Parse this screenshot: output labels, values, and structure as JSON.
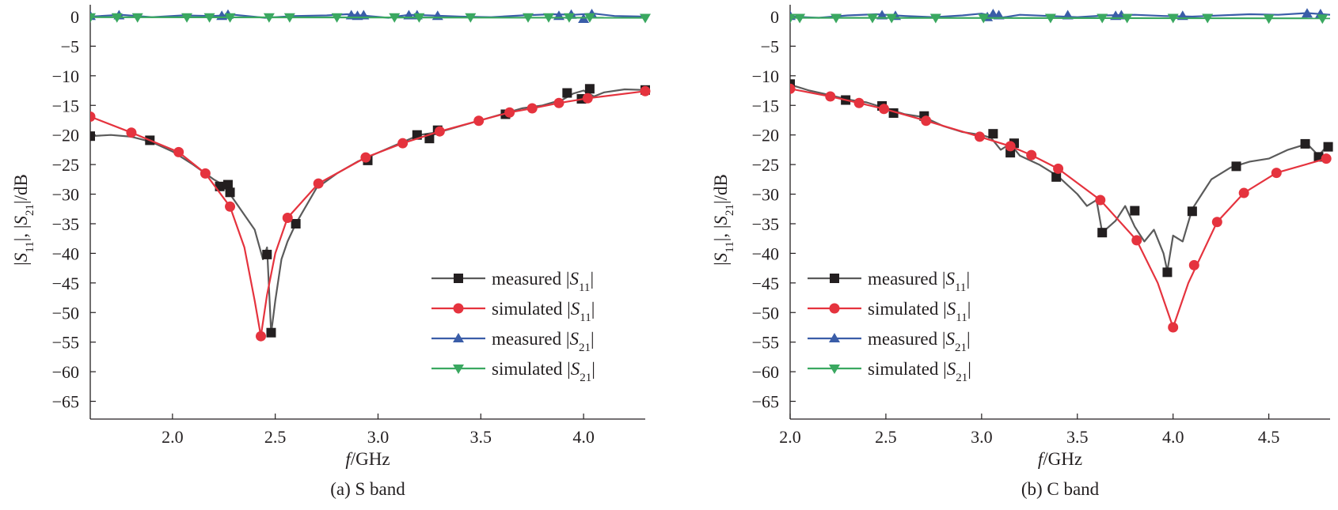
{
  "chart_data": [
    {
      "type": "line",
      "caption": "(a) S band",
      "xlabel_italic": "f",
      "xlabel_rest": "/GHz",
      "ylabel": "|S11|, |S21|/dB",
      "xlim": [
        1.6,
        4.3
      ],
      "ylim": [
        -68,
        2
      ],
      "xticks": [
        2.0,
        2.5,
        3.0,
        3.5,
        4.0
      ],
      "yticks": [
        0,
        -5,
        -10,
        -15,
        -20,
        -25,
        -30,
        -35,
        -40,
        -45,
        -50,
        -55,
        -60,
        -65
      ],
      "grid": false,
      "legend_position": "bottom-right",
      "series": [
        {
          "name": "measured |S11|",
          "color": "#5b5b5b",
          "marker": "square",
          "marker_color": "#231f20",
          "x": [
            1.6,
            1.7,
            1.8,
            1.9,
            2.0,
            2.1,
            2.2,
            2.25,
            2.3,
            2.35,
            2.4,
            2.44,
            2.46,
            2.48,
            2.5,
            2.53,
            2.56,
            2.6,
            2.7,
            2.8,
            2.9,
            3.0,
            3.1,
            3.2,
            3.3,
            3.4,
            3.5,
            3.6,
            3.7,
            3.8,
            3.9,
            3.95,
            4.0,
            4.05,
            4.1,
            4.2,
            4.3
          ],
          "y": [
            -20.2,
            -20.0,
            -20.3,
            -21.2,
            -22.8,
            -25.0,
            -27.5,
            -28.5,
            -31.0,
            -33.5,
            -36.0,
            -41.0,
            -39.0,
            -53.5,
            -48.0,
            -41.0,
            -38.0,
            -35.0,
            -29.0,
            -26.5,
            -24.5,
            -23.0,
            -21.5,
            -20.0,
            -19.5,
            -18.5,
            -17.5,
            -16.5,
            -15.5,
            -15.0,
            -14.0,
            -13.0,
            -12.5,
            -13.5,
            -12.8,
            -12.3,
            -12.4
          ],
          "marker_x": [
            1.6,
            1.89,
            2.23,
            2.27,
            2.28,
            2.46,
            2.48,
            2.6,
            2.95,
            3.19,
            3.25,
            3.29,
            3.62,
            3.92,
            3.99,
            4.03,
            4.3
          ],
          "marker_y": [
            -20.2,
            -20.9,
            -28.7,
            -28.4,
            -29.7,
            -40.2,
            -53.4,
            -35.0,
            -24.3,
            -20.0,
            -20.6,
            -19.2,
            -16.5,
            -12.9,
            -13.9,
            -12.2,
            -12.4
          ]
        },
        {
          "name": "simulated |S11|",
          "color": "#e5333e",
          "marker": "circle",
          "marker_color": "#e5333e",
          "x": [
            1.6,
            1.8,
            2.03,
            2.16,
            2.28,
            2.35,
            2.4,
            2.43,
            2.46,
            2.5,
            2.56,
            2.71,
            2.94,
            3.12,
            3.3,
            3.49,
            3.64,
            3.75,
            3.88,
            4.02,
            4.3
          ],
          "y": [
            -16.9,
            -19.6,
            -22.9,
            -26.5,
            -32.1,
            -39.0,
            -48.0,
            -54.0,
            -47.0,
            -40.0,
            -34.0,
            -28.2,
            -23.8,
            -21.4,
            -19.4,
            -17.6,
            -16.2,
            -15.5,
            -14.6,
            -13.8,
            -12.6
          ],
          "marker_x": [
            1.6,
            1.8,
            2.03,
            2.16,
            2.28,
            2.43,
            2.56,
            2.71,
            2.94,
            3.12,
            3.3,
            3.49,
            3.64,
            3.75,
            3.88,
            4.02,
            4.3
          ],
          "marker_y": [
            -16.9,
            -19.6,
            -22.9,
            -26.5,
            -32.1,
            -54.0,
            -34.0,
            -28.2,
            -23.8,
            -21.4,
            -19.4,
            -17.6,
            -16.2,
            -15.5,
            -14.6,
            -13.8,
            -12.6
          ]
        },
        {
          "name": "measured |S21|",
          "color": "#3a5da8",
          "marker": "triangle-up",
          "marker_color": "#3a5da8",
          "x": [
            1.6,
            1.75,
            1.9,
            2.05,
            2.2,
            2.3,
            2.45,
            2.6,
            2.75,
            2.85,
            2.95,
            3.05,
            3.15,
            3.25,
            3.4,
            3.55,
            3.7,
            3.85,
            3.95,
            4.05,
            4.15,
            4.3
          ],
          "y": [
            0,
            0.3,
            -0.1,
            0.2,
            0.1,
            0.3,
            -0.2,
            0.1,
            0.2,
            0.4,
            0.1,
            -0.2,
            0.3,
            0.2,
            0.0,
            -0.1,
            0.2,
            0.4,
            0.3,
            0.5,
            0.1,
            0.0
          ],
          "marker_x": [
            1.6,
            1.74,
            2.24,
            2.27,
            2.87,
            2.9,
            2.93,
            3.15,
            3.19,
            3.29,
            3.88,
            3.94,
            4.0,
            4.04
          ],
          "marker_y": [
            0.1,
            0.2,
            0.1,
            0.3,
            0.2,
            0.1,
            0.2,
            0.2,
            0.2,
            0.1,
            0.1,
            0.3,
            -0.4,
            0.4
          ]
        },
        {
          "name": "simulated |S21|",
          "color": "#3aa860",
          "marker": "triangle-down",
          "marker_color": "#3aa860",
          "x": [
            1.6,
            4.3
          ],
          "y": [
            -0.1,
            -0.2
          ],
          "marker_x": [
            1.6,
            1.73,
            1.83,
            2.07,
            2.18,
            2.28,
            2.47,
            2.57,
            2.8,
            3.08,
            3.2,
            3.45,
            3.73,
            3.83,
            3.93,
            4.03,
            4.3
          ],
          "marker_y": [
            -0.1,
            -0.1,
            -0.1,
            -0.1,
            -0.1,
            -0.1,
            -0.1,
            -0.1,
            -0.1,
            -0.1,
            -0.1,
            -0.1,
            -0.1,
            -0.1,
            -0.1,
            -0.1,
            -0.2
          ]
        }
      ]
    },
    {
      "type": "line",
      "caption": "(b) C band",
      "xlabel_italic": "f",
      "xlabel_rest": "/GHz",
      "ylabel": "|S11|, |S21|/dB",
      "xlim": [
        2.0,
        4.82
      ],
      "ylim": [
        -68,
        2
      ],
      "xticks": [
        2.0,
        2.5,
        3.0,
        3.5,
        4.0,
        4.5
      ],
      "yticks": [
        0,
        -5,
        -10,
        -15,
        -20,
        -25,
        -30,
        -35,
        -40,
        -45,
        -50,
        -55,
        -60,
        -65
      ],
      "grid": false,
      "legend_position": "bottom-left",
      "series": [
        {
          "name": "measured |S11|",
          "color": "#5b5b5b",
          "marker": "square",
          "marker_color": "#231f20",
          "x": [
            2.0,
            2.1,
            2.2,
            2.3,
            2.4,
            2.5,
            2.6,
            2.7,
            2.8,
            2.9,
            3.0,
            3.05,
            3.1,
            3.15,
            3.2,
            3.3,
            3.4,
            3.5,
            3.55,
            3.6,
            3.63,
            3.7,
            3.75,
            3.8,
            3.85,
            3.9,
            3.95,
            3.97,
            4.0,
            4.05,
            4.1,
            4.15,
            4.2,
            4.3,
            4.4,
            4.5,
            4.6,
            4.7,
            4.76,
            4.8
          ],
          "y": [
            -11.5,
            -12.5,
            -13.2,
            -14.0,
            -14.5,
            -15.5,
            -16.5,
            -17.0,
            -18.5,
            -19.5,
            -20.0,
            -20.5,
            -22.5,
            -21.5,
            -23.5,
            -25.0,
            -27.0,
            -30.0,
            -32.0,
            -31.0,
            -36.5,
            -34.5,
            -32.0,
            -35.5,
            -38.0,
            -36.0,
            -40.0,
            -43.0,
            -37.0,
            -38.0,
            -32.5,
            -30.0,
            -27.5,
            -25.5,
            -24.5,
            -24.0,
            -22.5,
            -21.5,
            -23.5,
            -22.0
          ],
          "marker_x": [
            2.0,
            2.29,
            2.48,
            2.54,
            2.7,
            3.06,
            3.15,
            3.17,
            3.39,
            3.63,
            3.8,
            3.97,
            4.1,
            4.33,
            4.69,
            4.76,
            4.81
          ],
          "marker_y": [
            -11.4,
            -14.1,
            -15.1,
            -16.3,
            -16.8,
            -19.8,
            -23.0,
            -21.4,
            -27.1,
            -36.5,
            -32.8,
            -43.2,
            -32.9,
            -25.3,
            -21.5,
            -23.7,
            -22.0
          ]
        },
        {
          "name": "simulated |S11|",
          "color": "#e5333e",
          "marker": "circle",
          "marker_color": "#e5333e",
          "x": [
            2.0,
            2.21,
            2.36,
            2.49,
            2.71,
            2.99,
            3.15,
            3.26,
            3.4,
            3.62,
            3.81,
            3.92,
            4.0,
            4.08,
            4.23,
            4.37,
            4.54,
            4.8
          ],
          "y": [
            -12.2,
            -13.5,
            -14.6,
            -15.6,
            -17.6,
            -20.3,
            -21.9,
            -23.4,
            -25.7,
            -31.0,
            -37.8,
            -45.0,
            -52.5,
            -45.0,
            -34.7,
            -29.8,
            -26.4,
            -24.0
          ],
          "marker_x": [
            2.0,
            2.21,
            2.36,
            2.49,
            2.71,
            2.99,
            3.15,
            3.26,
            3.4,
            3.62,
            3.81,
            4.0,
            4.11,
            4.23,
            4.37,
            4.54,
            4.8
          ],
          "marker_y": [
            -12.2,
            -13.5,
            -14.6,
            -15.6,
            -17.6,
            -20.3,
            -21.9,
            -23.4,
            -25.7,
            -31.0,
            -37.8,
            -52.5,
            -42.0,
            -34.7,
            -29.8,
            -26.4,
            -24.0
          ]
        },
        {
          "name": "measured |S21|",
          "color": "#3a5da8",
          "marker": "triangle-up",
          "marker_color": "#3a5da8",
          "x": [
            2.0,
            2.15,
            2.3,
            2.45,
            2.6,
            2.75,
            2.9,
            3.0,
            3.1,
            3.2,
            3.35,
            3.5,
            3.65,
            3.8,
            3.95,
            4.1,
            4.25,
            4.4,
            4.55,
            4.7,
            4.82
          ],
          "y": [
            0,
            -0.2,
            0.2,
            0.4,
            0.1,
            -0.1,
            0.2,
            0.5,
            -0.2,
            0.3,
            0.1,
            -0.1,
            0.2,
            0.3,
            0.1,
            0.0,
            0.2,
            0.4,
            0.3,
            0.6,
            0.3
          ],
          "marker_x": [
            2.0,
            2.48,
            2.55,
            3.03,
            3.06,
            3.09,
            3.45,
            3.7,
            3.73,
            4.05,
            4.7,
            4.77
          ],
          "marker_y": [
            0.1,
            0.2,
            0.1,
            -0.1,
            0.4,
            0.2,
            0.2,
            0.1,
            0.2,
            0.1,
            0.5,
            0.4
          ]
        },
        {
          "name": "simulated |S21|",
          "color": "#3aa860",
          "marker": "triangle-down",
          "marker_color": "#3aa860",
          "x": [
            2.0,
            4.82
          ],
          "y": [
            -0.2,
            -0.3
          ],
          "marker_x": [
            2.0,
            2.05,
            2.24,
            2.43,
            2.53,
            2.76,
            3.01,
            3.36,
            3.63,
            3.76,
            4.0,
            4.18,
            4.5,
            4.78
          ],
          "marker_y": [
            -0.2,
            -0.2,
            -0.2,
            -0.2,
            -0.2,
            -0.2,
            -0.2,
            -0.2,
            -0.2,
            -0.2,
            -0.2,
            -0.2,
            -0.3,
            -0.3
          ]
        }
      ]
    }
  ]
}
